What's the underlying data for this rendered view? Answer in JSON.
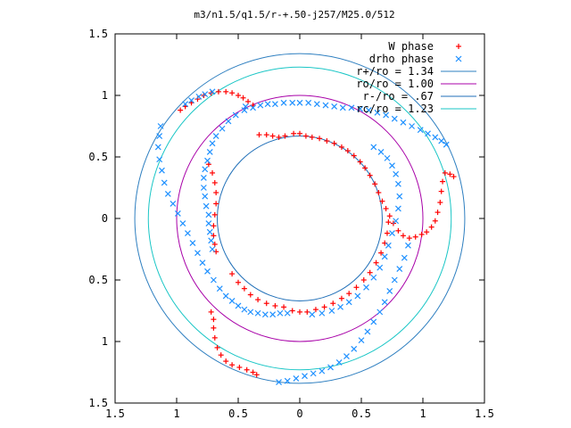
{
  "chart_data": {
    "type": "scatter",
    "title": "m3/n1.5/q1.5/r-+.50-j257/M25.0/512",
    "xlim": [
      -1.5,
      1.5
    ],
    "ylim": [
      -1.5,
      1.5
    ],
    "x_ticks": [
      {
        "value": -1.5,
        "label": "1.5"
      },
      {
        "value": -1,
        "label": "1"
      },
      {
        "value": -0.5,
        "label": "0.5"
      },
      {
        "value": 0,
        "label": "0"
      },
      {
        "value": 0.5,
        "label": "0.5"
      },
      {
        "value": 1,
        "label": "1"
      },
      {
        "value": 1.5,
        "label": "1.5"
      }
    ],
    "y_ticks": [
      {
        "value": 1.5,
        "label": "1.5"
      },
      {
        "value": 1,
        "label": "1"
      },
      {
        "value": 0.5,
        "label": "0.5"
      },
      {
        "value": 0,
        "label": "0"
      },
      {
        "value": -0.5,
        "label": "0.5"
      },
      {
        "value": -1,
        "label": "1"
      },
      {
        "value": -1.5,
        "label": "1.5"
      }
    ],
    "legend_position": "top-right",
    "circles": [
      {
        "name": "r+/ro = 1.34",
        "radius": 1.34,
        "color": "#2e7fc0"
      },
      {
        "name": "ro/ro = 1.00",
        "radius": 1.0,
        "color": "#a800a8"
      },
      {
        "name": "r-/ro = .67",
        "radius": 0.67,
        "color": "#1f6fb8"
      },
      {
        "name": "rc/ro = 1.23",
        "radius": 1.23,
        "color": "#1ac6c6"
      }
    ],
    "series": [
      {
        "name": "W phase",
        "marker": "plus",
        "color": "#ff0000",
        "points": [
          [
            -0.97,
            0.88
          ],
          [
            -0.93,
            0.91
          ],
          [
            -0.88,
            0.94
          ],
          [
            -0.83,
            0.97
          ],
          [
            -0.78,
            1.0
          ],
          [
            -0.72,
            1.02
          ],
          [
            -0.66,
            1.03
          ],
          [
            -0.6,
            1.03
          ],
          [
            -0.55,
            1.02
          ],
          [
            -0.5,
            1.0
          ],
          [
            -0.46,
            0.98
          ],
          [
            -0.42,
            0.95
          ],
          [
            -0.38,
            0.92
          ],
          [
            -0.33,
            0.68
          ],
          [
            -0.27,
            0.68
          ],
          [
            -0.22,
            0.67
          ],
          [
            -0.17,
            0.66
          ],
          [
            -0.12,
            0.67
          ],
          [
            -0.05,
            0.69
          ],
          [
            0.0,
            0.69
          ],
          [
            0.05,
            0.67
          ],
          [
            0.1,
            0.66
          ],
          [
            0.16,
            0.65
          ],
          [
            0.22,
            0.63
          ],
          [
            0.28,
            0.61
          ],
          [
            0.34,
            0.58
          ],
          [
            0.39,
            0.55
          ],
          [
            0.44,
            0.51
          ],
          [
            0.49,
            0.46
          ],
          [
            0.53,
            0.41
          ],
          [
            0.57,
            0.35
          ],
          [
            0.61,
            0.28
          ],
          [
            0.64,
            0.21
          ],
          [
            0.67,
            0.14
          ],
          [
            0.7,
            0.08
          ],
          [
            0.73,
            0.02
          ],
          [
            0.76,
            -0.04
          ],
          [
            0.8,
            -0.1
          ],
          [
            0.84,
            -0.14
          ],
          [
            0.89,
            -0.16
          ],
          [
            0.94,
            -0.15
          ],
          [
            0.99,
            -0.13
          ],
          [
            1.03,
            -0.11
          ],
          [
            1.07,
            -0.07
          ],
          [
            1.1,
            -0.02
          ],
          [
            1.12,
            0.05
          ],
          [
            1.14,
            0.13
          ],
          [
            1.15,
            0.22
          ],
          [
            1.16,
            0.3
          ],
          [
            1.18,
            0.37
          ],
          [
            1.22,
            0.36
          ],
          [
            1.25,
            0.34
          ],
          [
            -0.74,
            0.44
          ],
          [
            -0.71,
            0.37
          ],
          [
            -0.69,
            0.29
          ],
          [
            -0.68,
            0.21
          ],
          [
            -0.68,
            0.12
          ],
          [
            -0.69,
            0.03
          ],
          [
            -0.7,
            -0.06
          ],
          [
            -0.7,
            -0.14
          ],
          [
            -0.69,
            -0.21
          ],
          [
            -0.68,
            -0.27
          ],
          [
            -0.55,
            -0.45
          ],
          [
            -0.5,
            -0.52
          ],
          [
            -0.45,
            -0.57
          ],
          [
            -0.4,
            -0.62
          ],
          [
            -0.34,
            -0.66
          ],
          [
            -0.27,
            -0.69
          ],
          [
            -0.2,
            -0.71
          ],
          [
            -0.13,
            -0.72
          ],
          [
            -0.06,
            -0.75
          ],
          [
            0.0,
            -0.76
          ],
          [
            0.06,
            -0.76
          ],
          [
            0.13,
            -0.74
          ],
          [
            0.2,
            -0.72
          ],
          [
            0.27,
            -0.69
          ],
          [
            0.34,
            -0.65
          ],
          [
            0.4,
            -0.61
          ],
          [
            0.46,
            -0.56
          ],
          [
            0.52,
            -0.5
          ],
          [
            0.57,
            -0.44
          ],
          [
            0.62,
            -0.36
          ],
          [
            0.66,
            -0.28
          ],
          [
            0.69,
            -0.2
          ],
          [
            0.71,
            -0.12
          ],
          [
            0.72,
            -0.03
          ],
          [
            -0.72,
            -0.76
          ],
          [
            -0.7,
            -0.82
          ],
          [
            -0.7,
            -0.89
          ],
          [
            -0.69,
            -0.97
          ],
          [
            -0.67,
            -1.05
          ],
          [
            -0.64,
            -1.11
          ],
          [
            -0.6,
            -1.16
          ],
          [
            -0.55,
            -1.19
          ],
          [
            -0.49,
            -1.21
          ],
          [
            -0.43,
            -1.23
          ],
          [
            -0.38,
            -1.25
          ],
          [
            -0.35,
            -1.27
          ]
        ]
      },
      {
        "name": "drho phase",
        "marker": "cross",
        "color": "#1e90ff",
        "points": [
          [
            -0.93,
            0.93
          ],
          [
            -0.88,
            0.96
          ],
          [
            -0.82,
            0.99
          ],
          [
            -0.77,
            1.01
          ],
          [
            -0.71,
            1.03
          ],
          [
            -0.44,
            0.91
          ],
          [
            -0.38,
            0.9
          ],
          [
            -0.32,
            0.92
          ],
          [
            -0.26,
            0.93
          ],
          [
            -0.2,
            0.93
          ],
          [
            -0.13,
            0.94
          ],
          [
            -0.06,
            0.94
          ],
          [
            0.0,
            0.94
          ],
          [
            0.07,
            0.94
          ],
          [
            0.14,
            0.93
          ],
          [
            0.21,
            0.92
          ],
          [
            0.28,
            0.91
          ],
          [
            0.35,
            0.9
          ],
          [
            0.42,
            0.9
          ],
          [
            0.49,
            0.89
          ],
          [
            0.56,
            0.88
          ],
          [
            0.63,
            0.86
          ],
          [
            0.7,
            0.84
          ],
          [
            0.77,
            0.81
          ],
          [
            0.84,
            0.78
          ],
          [
            0.91,
            0.75
          ],
          [
            0.98,
            0.72
          ],
          [
            1.04,
            0.69
          ],
          [
            1.1,
            0.66
          ],
          [
            1.15,
            0.63
          ],
          [
            1.19,
            0.6
          ],
          [
            -0.45,
            0.88
          ],
          [
            -0.52,
            0.84
          ],
          [
            -0.58,
            0.79
          ],
          [
            -0.63,
            0.73
          ],
          [
            -0.68,
            0.67
          ],
          [
            -0.71,
            0.61
          ],
          [
            -0.73,
            0.54
          ],
          [
            -0.75,
            0.47
          ],
          [
            -0.77,
            0.4
          ],
          [
            -0.78,
            0.33
          ],
          [
            -0.78,
            0.25
          ],
          [
            -0.77,
            0.18
          ],
          [
            -0.76,
            0.1
          ],
          [
            -0.74,
            0.03
          ],
          [
            -0.74,
            -0.04
          ],
          [
            -0.73,
            -0.11
          ],
          [
            -0.72,
            -0.18
          ],
          [
            -0.71,
            -0.25
          ],
          [
            -1.13,
            0.75
          ],
          [
            -1.14,
            0.67
          ],
          [
            -1.15,
            0.58
          ],
          [
            -1.14,
            0.48
          ],
          [
            -1.12,
            0.39
          ],
          [
            -1.1,
            0.29
          ],
          [
            -1.07,
            0.2
          ],
          [
            -1.03,
            0.12
          ],
          [
            -0.99,
            0.04
          ],
          [
            -0.95,
            -0.04
          ],
          [
            -0.91,
            -0.12
          ],
          [
            -0.87,
            -0.2
          ],
          [
            -0.83,
            -0.28
          ],
          [
            -0.79,
            -0.36
          ],
          [
            -0.75,
            -0.43
          ],
          [
            -0.7,
            -0.5
          ],
          [
            -0.65,
            -0.57
          ],
          [
            -0.6,
            -0.63
          ],
          [
            -0.55,
            -0.67
          ],
          [
            -0.5,
            -0.71
          ],
          [
            -0.45,
            -0.74
          ],
          [
            -0.4,
            -0.76
          ],
          [
            -0.34,
            -0.77
          ],
          [
            -0.28,
            -0.78
          ],
          [
            -0.22,
            -0.78
          ],
          [
            -0.16,
            -0.77
          ],
          [
            -0.1,
            -0.77
          ],
          [
            0.1,
            -0.78
          ],
          [
            0.18,
            -0.77
          ],
          [
            0.26,
            -0.75
          ],
          [
            0.33,
            -0.72
          ],
          [
            0.4,
            -0.68
          ],
          [
            0.47,
            -0.63
          ],
          [
            0.54,
            -0.56
          ],
          [
            0.6,
            -0.48
          ],
          [
            0.65,
            -0.4
          ],
          [
            0.69,
            -0.31
          ],
          [
            0.72,
            -0.22
          ],
          [
            0.75,
            -0.12
          ],
          [
            0.78,
            -0.02
          ],
          [
            0.8,
            0.08
          ],
          [
            0.81,
            0.18
          ],
          [
            0.8,
            0.28
          ],
          [
            0.78,
            0.36
          ],
          [
            0.75,
            0.43
          ],
          [
            0.71,
            0.49
          ],
          [
            0.66,
            0.54
          ],
          [
            0.6,
            0.58
          ],
          [
            -0.17,
            -1.33
          ],
          [
            -0.1,
            -1.32
          ],
          [
            -0.03,
            -1.3
          ],
          [
            0.04,
            -1.28
          ],
          [
            0.11,
            -1.26
          ],
          [
            0.18,
            -1.24
          ],
          [
            0.25,
            -1.21
          ],
          [
            0.32,
            -1.17
          ],
          [
            0.38,
            -1.12
          ],
          [
            0.44,
            -1.06
          ],
          [
            0.5,
            -0.99
          ],
          [
            0.55,
            -0.92
          ],
          [
            0.6,
            -0.84
          ],
          [
            0.65,
            -0.76
          ],
          [
            0.69,
            -0.68
          ],
          [
            0.73,
            -0.59
          ],
          [
            0.77,
            -0.5
          ],
          [
            0.81,
            -0.41
          ],
          [
            0.85,
            -0.32
          ],
          [
            0.88,
            -0.22
          ]
        ]
      }
    ]
  }
}
